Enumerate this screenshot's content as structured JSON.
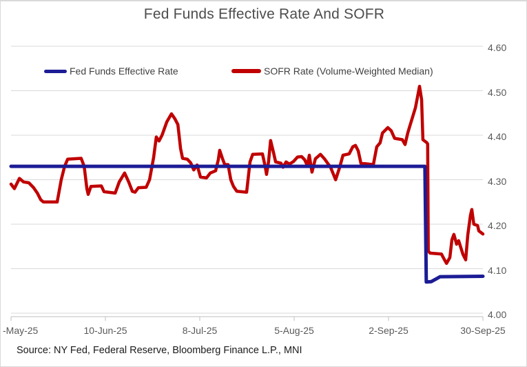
{
  "title": "Fed Funds Effective Rate And SOFR",
  "source": "Source: NY Fed, Federal Reserve, Bloomberg Finance L.P., MNI",
  "colors": {
    "fed_funds_line": "#1c1c96",
    "sofr_line": "#c00000",
    "gridline": "#d9d9d9",
    "axis_line": "#bfbfbf",
    "axis_text": "#595959",
    "title_text": "#4d4d4d",
    "legend_text": "#404040",
    "source_text": "#1a1a1a"
  },
  "legend": {
    "items": [
      {
        "label": "Fed Funds Effective Rate",
        "color": "#1c1c96"
      },
      {
        "label": "SOFR Rate (Volume-Weighted Median)",
        "color": "#c00000"
      }
    ]
  },
  "chart_data": {
    "type": "line",
    "title": "Fed Funds Effective Rate And SOFR",
    "xlabel": "",
    "ylabel": "",
    "grid": "horizontal",
    "legend_position": "top",
    "y_axis": {
      "side": "right",
      "range": [
        4.0,
        4.6
      ],
      "tick_labels": [
        "4.60",
        "4.50",
        "4.40",
        "4.30",
        "4.20",
        "4.10",
        "4.00"
      ],
      "tick_values": [
        4.6,
        4.5,
        4.4,
        4.3,
        4.2,
        4.1,
        4.0
      ]
    },
    "x_axis": {
      "tick_labels": [
        "-May-25",
        "10-Jun-25",
        "8-Jul-25",
        "5-Aug-25",
        "2-Sep-25",
        "30-Sep-25"
      ],
      "note": "ticks every 28 days; first label clipped at left edge; x stored below as days since first tick (0-140)"
    },
    "series": [
      {
        "name": "Fed Funds Effective Rate",
        "color": "#1c1c96",
        "width": 5,
        "points": [
          {
            "d": 0.0,
            "v": 4.33
          },
          {
            "d": 122.8,
            "v": 4.33
          },
          {
            "d": 123.2,
            "v": 4.07
          },
          {
            "d": 124.7,
            "v": 4.071
          },
          {
            "d": 127.3,
            "v": 4.082
          },
          {
            "d": 140.0,
            "v": 4.083
          }
        ]
      },
      {
        "name": "SOFR Rate (Volume-Weighted Median)",
        "color": "#c00000",
        "width": 4.5,
        "points": [
          {
            "d": 0.0,
            "v": 4.29
          },
          {
            "d": 1.0,
            "v": 4.28
          },
          {
            "d": 2.5,
            "v": 4.303
          },
          {
            "d": 3.7,
            "v": 4.295
          },
          {
            "d": 5.3,
            "v": 4.293
          },
          {
            "d": 6.7,
            "v": 4.282
          },
          {
            "d": 7.8,
            "v": 4.27
          },
          {
            "d": 8.8,
            "v": 4.255
          },
          {
            "d": 9.6,
            "v": 4.25
          },
          {
            "d": 13.7,
            "v": 4.25
          },
          {
            "d": 14.9,
            "v": 4.3
          },
          {
            "d": 15.9,
            "v": 4.33
          },
          {
            "d": 16.8,
            "v": 4.346
          },
          {
            "d": 20.8,
            "v": 4.348
          },
          {
            "d": 21.7,
            "v": 4.33
          },
          {
            "d": 22.5,
            "v": 4.28
          },
          {
            "d": 22.9,
            "v": 4.267
          },
          {
            "d": 23.7,
            "v": 4.285
          },
          {
            "d": 26.8,
            "v": 4.286
          },
          {
            "d": 27.6,
            "v": 4.273
          },
          {
            "d": 30.9,
            "v": 4.27
          },
          {
            "d": 32.1,
            "v": 4.295
          },
          {
            "d": 33.7,
            "v": 4.315
          },
          {
            "d": 34.9,
            "v": 4.295
          },
          {
            "d": 36.0,
            "v": 4.274
          },
          {
            "d": 36.8,
            "v": 4.272
          },
          {
            "d": 37.8,
            "v": 4.282
          },
          {
            "d": 40.1,
            "v": 4.283
          },
          {
            "d": 41.1,
            "v": 4.3
          },
          {
            "d": 42.3,
            "v": 4.35
          },
          {
            "d": 43.1,
            "v": 4.396
          },
          {
            "d": 43.9,
            "v": 4.387
          },
          {
            "d": 44.8,
            "v": 4.4
          },
          {
            "d": 46.2,
            "v": 4.43
          },
          {
            "d": 47.6,
            "v": 4.448
          },
          {
            "d": 48.6,
            "v": 4.437
          },
          {
            "d": 49.5,
            "v": 4.424
          },
          {
            "d": 50.3,
            "v": 4.37
          },
          {
            "d": 50.9,
            "v": 4.348
          },
          {
            "d": 52.3,
            "v": 4.346
          },
          {
            "d": 53.3,
            "v": 4.338
          },
          {
            "d": 54.2,
            "v": 4.322
          },
          {
            "d": 55.2,
            "v": 4.333
          },
          {
            "d": 56.2,
            "v": 4.306
          },
          {
            "d": 58.0,
            "v": 4.304
          },
          {
            "d": 59.1,
            "v": 4.315
          },
          {
            "d": 60.7,
            "v": 4.32
          },
          {
            "d": 61.5,
            "v": 4.345
          },
          {
            "d": 61.9,
            "v": 4.366
          },
          {
            "d": 62.7,
            "v": 4.348
          },
          {
            "d": 63.4,
            "v": 4.334
          },
          {
            "d": 64.4,
            "v": 4.334
          },
          {
            "d": 65.2,
            "v": 4.3
          },
          {
            "d": 66.0,
            "v": 4.285
          },
          {
            "d": 67.0,
            "v": 4.274
          },
          {
            "d": 69.9,
            "v": 4.272
          },
          {
            "d": 70.9,
            "v": 4.34
          },
          {
            "d": 71.7,
            "v": 4.357
          },
          {
            "d": 74.6,
            "v": 4.358
          },
          {
            "d": 75.4,
            "v": 4.33
          },
          {
            "d": 75.8,
            "v": 4.312
          },
          {
            "d": 76.4,
            "v": 4.34
          },
          {
            "d": 77.0,
            "v": 4.388
          },
          {
            "d": 77.9,
            "v": 4.36
          },
          {
            "d": 78.5,
            "v": 4.34
          },
          {
            "d": 80.1,
            "v": 4.337
          },
          {
            "d": 80.7,
            "v": 4.328
          },
          {
            "d": 81.6,
            "v": 4.34
          },
          {
            "d": 82.6,
            "v": 4.335
          },
          {
            "d": 83.8,
            "v": 4.341
          },
          {
            "d": 85.0,
            "v": 4.351
          },
          {
            "d": 86.2,
            "v": 4.352
          },
          {
            "d": 87.1,
            "v": 4.345
          },
          {
            "d": 87.9,
            "v": 4.332
          },
          {
            "d": 88.5,
            "v": 4.355
          },
          {
            "d": 89.3,
            "v": 4.317
          },
          {
            "d": 90.3,
            "v": 4.347
          },
          {
            "d": 91.8,
            "v": 4.357
          },
          {
            "d": 93.0,
            "v": 4.347
          },
          {
            "d": 94.8,
            "v": 4.328
          },
          {
            "d": 96.3,
            "v": 4.3
          },
          {
            "d": 97.5,
            "v": 4.328
          },
          {
            "d": 98.5,
            "v": 4.355
          },
          {
            "d": 100.3,
            "v": 4.358
          },
          {
            "d": 101.4,
            "v": 4.374
          },
          {
            "d": 102.2,
            "v": 4.377
          },
          {
            "d": 103.0,
            "v": 4.365
          },
          {
            "d": 103.8,
            "v": 4.337
          },
          {
            "d": 107.5,
            "v": 4.334
          },
          {
            "d": 108.5,
            "v": 4.374
          },
          {
            "d": 109.5,
            "v": 4.383
          },
          {
            "d": 110.2,
            "v": 4.405
          },
          {
            "d": 111.8,
            "v": 4.417
          },
          {
            "d": 112.8,
            "v": 4.41
          },
          {
            "d": 113.8,
            "v": 4.393
          },
          {
            "d": 116.1,
            "v": 4.39
          },
          {
            "d": 116.9,
            "v": 4.379
          },
          {
            "d": 117.7,
            "v": 4.405
          },
          {
            "d": 118.3,
            "v": 4.42
          },
          {
            "d": 120.0,
            "v": 4.462
          },
          {
            "d": 121.2,
            "v": 4.51
          },
          {
            "d": 121.8,
            "v": 4.48
          },
          {
            "d": 122.2,
            "v": 4.39
          },
          {
            "d": 123.4,
            "v": 4.383
          },
          {
            "d": 123.6,
            "v": 4.38
          },
          {
            "d": 123.8,
            "v": 4.14
          },
          {
            "d": 124.3,
            "v": 4.135
          },
          {
            "d": 127.7,
            "v": 4.133
          },
          {
            "d": 128.3,
            "v": 4.124
          },
          {
            "d": 129.2,
            "v": 4.112
          },
          {
            "d": 130.2,
            "v": 4.125
          },
          {
            "d": 130.8,
            "v": 4.165
          },
          {
            "d": 131.4,
            "v": 4.177
          },
          {
            "d": 132.2,
            "v": 4.155
          },
          {
            "d": 132.8,
            "v": 4.163
          },
          {
            "d": 134.1,
            "v": 4.132
          },
          {
            "d": 134.9,
            "v": 4.12
          },
          {
            "d": 135.5,
            "v": 4.175
          },
          {
            "d": 136.3,
            "v": 4.22
          },
          {
            "d": 136.7,
            "v": 4.233
          },
          {
            "d": 137.3,
            "v": 4.2
          },
          {
            "d": 138.4,
            "v": 4.197
          },
          {
            "d": 138.8,
            "v": 4.185
          },
          {
            "d": 140.0,
            "v": 4.178
          }
        ]
      }
    ]
  }
}
